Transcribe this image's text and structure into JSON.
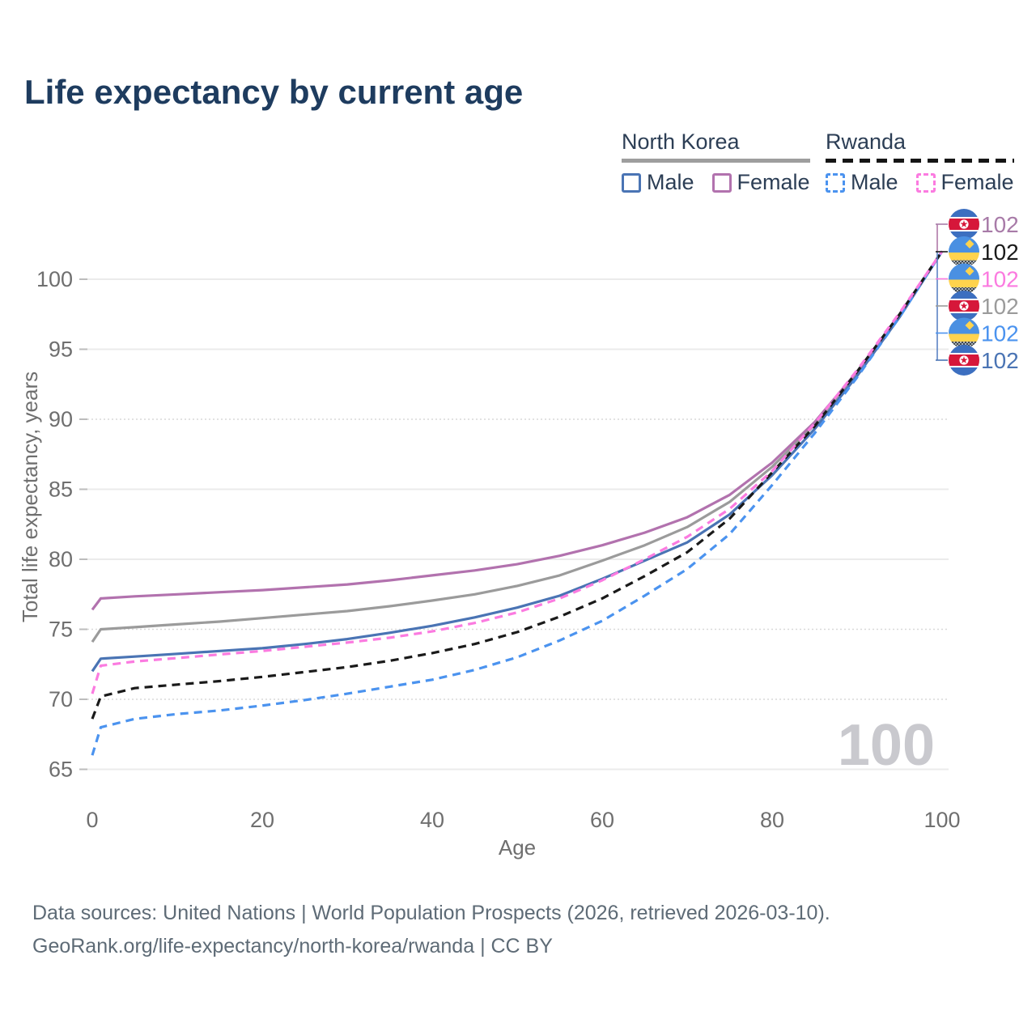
{
  "title": "Life expectancy by current age",
  "legend": {
    "groups": [
      {
        "name": "North Korea",
        "line_style": "solid",
        "items": [
          {
            "label": "Male",
            "color": "#4a74b4"
          },
          {
            "label": "Female",
            "color": "#b272ae"
          }
        ]
      },
      {
        "name": "Rwanda",
        "line_style": "dashed",
        "items": [
          {
            "label": "Male",
            "color": "#4b93ef"
          },
          {
            "label": "Female",
            "color": "#fb7be0"
          }
        ]
      }
    ]
  },
  "watermark": "100",
  "footer": {
    "line1": "Data sources: United Nations | World Population Prospects (2026, retrieved 2026-03-10).",
    "line2": "GeoRank.org/life-expectancy/north-korea/rwanda | CC BY"
  },
  "chart_data": {
    "type": "line",
    "title": "Life expectancy by current age",
    "xlabel": "Age",
    "ylabel": "Total life expectancy, years",
    "xticks": [
      0,
      20,
      40,
      60,
      80,
      100
    ],
    "yticks": [
      65,
      70,
      75,
      80,
      85,
      90,
      95,
      100
    ],
    "xlim": [
      0,
      100
    ],
    "ylim": [
      63.5,
      103
    ],
    "grid": {
      "solid_ticks": [
        65,
        80,
        85,
        95,
        100
      ],
      "dotted_ticks": [
        70,
        75,
        90
      ],
      "solid_color": "#ebebeb",
      "dotted_color": "#d9d9d9",
      "tick_color": "#bcbcbc"
    },
    "axis_text_color": "#6f6f6f",
    "x": [
      0,
      1,
      5,
      10,
      15,
      20,
      25,
      30,
      35,
      40,
      45,
      50,
      55,
      60,
      65,
      70,
      75,
      80,
      85,
      90,
      95,
      100
    ],
    "series": [
      {
        "name": "North Korea Both sexes",
        "country": "North Korea",
        "sex": "both",
        "color": "#9b9b9b",
        "line_style": "solid",
        "values": [
          74.1,
          75.0,
          75.15,
          75.35,
          75.55,
          75.8,
          76.05,
          76.3,
          76.65,
          77.05,
          77.5,
          78.1,
          78.85,
          79.9,
          81.0,
          82.3,
          84.1,
          86.6,
          89.6,
          93.3,
          97.4,
          102
        ]
      },
      {
        "name": "North Korea Male",
        "country": "North Korea",
        "sex": "male",
        "color": "#4a74b4",
        "line_style": "solid",
        "values": [
          72.0,
          72.9,
          73.05,
          73.25,
          73.45,
          73.65,
          73.95,
          74.3,
          74.75,
          75.25,
          75.85,
          76.55,
          77.4,
          78.6,
          79.9,
          81.2,
          83.2,
          86.0,
          89.3,
          93.1,
          97.3,
          102
        ]
      },
      {
        "name": "North Korea Female",
        "country": "North Korea",
        "sex": "female",
        "color": "#b272ae",
        "line_style": "solid",
        "values": [
          76.4,
          77.2,
          77.35,
          77.5,
          77.65,
          77.8,
          78.0,
          78.2,
          78.5,
          78.85,
          79.2,
          79.65,
          80.25,
          81.0,
          81.9,
          83.0,
          84.6,
          86.9,
          89.8,
          93.4,
          97.5,
          102
        ]
      },
      {
        "name": "Rwanda Male",
        "country": "Rwanda",
        "sex": "male",
        "color": "#4b93ef",
        "line_style": "dashed",
        "values": [
          66.0,
          68.0,
          68.6,
          68.95,
          69.2,
          69.55,
          69.95,
          70.4,
          70.9,
          71.4,
          72.1,
          73.0,
          74.2,
          75.6,
          77.4,
          79.3,
          81.8,
          85.3,
          89.0,
          93.0,
          97.3,
          102
        ]
      },
      {
        "name": "Rwanda Both sexes",
        "country": "Rwanda",
        "sex": "both",
        "color": "#1a1a1a",
        "line_style": "dashed",
        "values": [
          68.6,
          70.2,
          70.8,
          71.05,
          71.3,
          71.6,
          71.95,
          72.3,
          72.75,
          73.3,
          73.95,
          74.8,
          75.9,
          77.2,
          78.8,
          80.5,
          82.9,
          86.2,
          89.5,
          93.4,
          97.5,
          102
        ]
      },
      {
        "name": "Rwanda Female",
        "country": "Rwanda",
        "sex": "female",
        "color": "#fb7be0",
        "line_style": "dashed",
        "values": [
          70.4,
          72.4,
          72.7,
          72.95,
          73.2,
          73.45,
          73.75,
          74.05,
          74.4,
          74.85,
          75.45,
          76.2,
          77.2,
          78.5,
          80.0,
          81.6,
          83.6,
          86.3,
          89.7,
          93.5,
          97.6,
          102
        ]
      }
    ],
    "end_labels": [
      {
        "flag": "north-korea",
        "value": "102",
        "color": "#a87ba8",
        "series": "North Korea Female"
      },
      {
        "flag": "rwanda",
        "value": "102",
        "color": "#1a1a1a",
        "series": "Rwanda Both sexes"
      },
      {
        "flag": "rwanda",
        "value": "102",
        "color": "#fb7be0",
        "series": "Rwanda Female"
      },
      {
        "flag": "north-korea",
        "value": "102",
        "color": "#9b9b9b",
        "series": "North Korea Both sexes"
      },
      {
        "flag": "rwanda",
        "value": "102",
        "color": "#4b93ef",
        "series": "Rwanda Male"
      },
      {
        "flag": "north-korea",
        "value": "102",
        "color": "#4a74b4",
        "series": "North Korea Male"
      }
    ]
  }
}
